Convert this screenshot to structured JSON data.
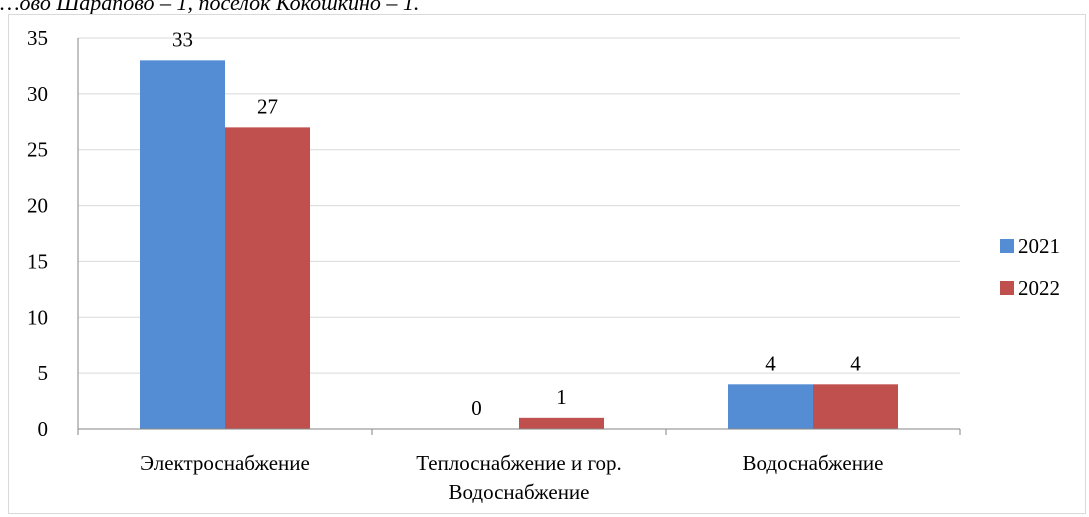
{
  "top_text": "…ово Шарапово – 1, поселок Кокошкино – 1.",
  "colors": {
    "series_2021": "#548dd4",
    "series_2022": "#c0504d",
    "grid": "#d9d9d9",
    "axis": "#868686"
  },
  "chart_data": {
    "type": "bar",
    "categories": [
      "Электроснабжение",
      "Теплоснабжение и гор. Водоснабжение",
      "Водоснабжение"
    ],
    "category_lines": [
      [
        "Электроснабжение"
      ],
      [
        "Теплоснабжение и гор.",
        "Водоснабжение"
      ],
      [
        "Водоснабжение"
      ]
    ],
    "series": [
      {
        "name": "2021",
        "values": [
          33,
          0,
          4
        ]
      },
      {
        "name": "2022",
        "values": [
          27,
          1,
          4
        ]
      }
    ],
    "ylim": [
      0,
      35
    ],
    "yticks": [
      0,
      5,
      10,
      15,
      20,
      25,
      30,
      35
    ],
    "grid": true,
    "legend": "right",
    "title": "",
    "xlabel": "",
    "ylabel": ""
  }
}
